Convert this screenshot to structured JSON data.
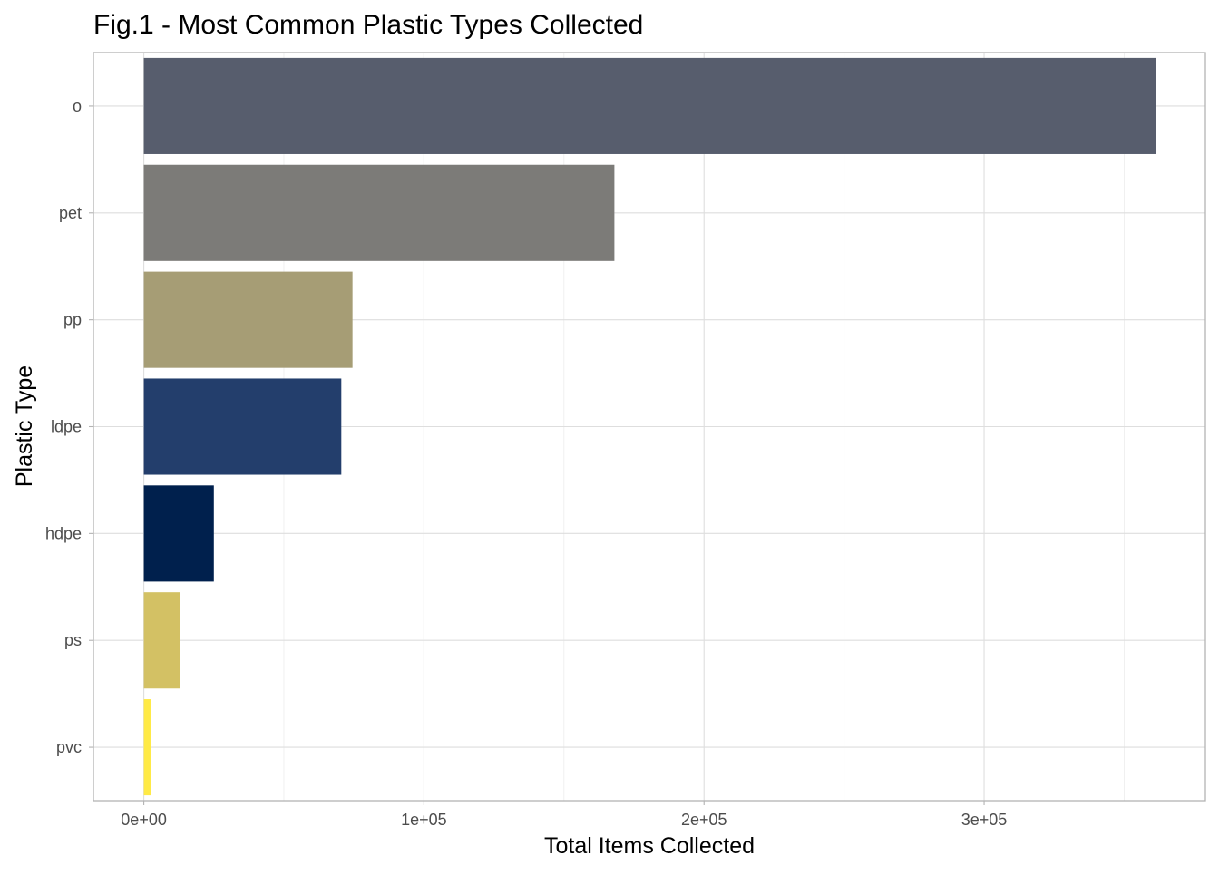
{
  "chart_data": {
    "type": "bar",
    "orientation": "horizontal",
    "title": "Fig.1 - Most Common Plastic Types Collected",
    "xlabel": "Total Items Collected",
    "ylabel": "Plastic Type",
    "categories": [
      "o",
      "pet",
      "pp",
      "ldpe",
      "hdpe",
      "ps",
      "pvc"
    ],
    "values": [
      361500,
      168000,
      74500,
      70500,
      25000,
      13000,
      2500
    ],
    "colors": [
      "#575D6D",
      "#7C7B78",
      "#A69D75",
      "#233E6C",
      "#00204D",
      "#D3C164",
      "#FFEA46"
    ],
    "xlim": [
      -18000,
      379000
    ],
    "x_ticks": [
      0,
      100000,
      200000,
      300000
    ],
    "x_tick_labels": [
      "0e+00",
      "1e+05",
      "2e+05",
      "3e+05"
    ],
    "x_minor_ticks": [
      50000,
      150000,
      250000,
      350000
    ],
    "grid": true,
    "legend": "none"
  }
}
